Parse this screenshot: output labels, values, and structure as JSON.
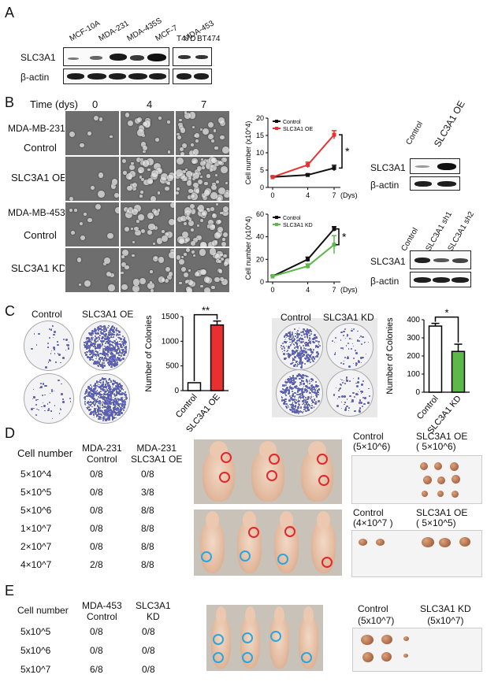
{
  "panels": {
    "A": "A",
    "B": "B",
    "C": "C",
    "D": "D",
    "E": "E"
  },
  "panelA": {
    "cell_lines": [
      "MCF-10A",
      "MDA-231",
      "MDA-435S",
      "MCF-7",
      "MDA-453",
      "T47D",
      "BT474"
    ],
    "row_labels": [
      "SLC3A1",
      "β-actin"
    ]
  },
  "panelB": {
    "time_header": "Time (dys)",
    "times": [
      "0",
      "4",
      "7"
    ],
    "groups": [
      {
        "cell_line": "MDA-MB-231",
        "rows": [
          "Control",
          "SLC3A1 OE"
        ]
      },
      {
        "cell_line": "MDA-MB-453",
        "rows": [
          "Control",
          "SLC3A1 KD"
        ]
      }
    ],
    "blot_oe": {
      "lanes": [
        "Control",
        "SLC3A1 OE"
      ],
      "rows": [
        "SLC3A1",
        "β-actin"
      ]
    },
    "blot_kd": {
      "lanes": [
        "Control",
        "SLC3A1 sh1",
        "SLC3A1 sh2"
      ],
      "rows": [
        "SLC3A1",
        "β-actin"
      ]
    }
  },
  "panelC": {
    "oe_dish_labels": [
      "Control",
      "SLC3A1 OE"
    ],
    "kd_dish_labels": [
      "Control",
      "SLC3A1 KD"
    ]
  },
  "panelD": {
    "headers": [
      "Cell number",
      "MDA-231\nControl",
      "MDA-231\nSLC3A1 OE"
    ],
    "rows": [
      [
        "5×10^4",
        "0/8",
        "0/8"
      ],
      [
        "5×10^5",
        "0/8",
        "3/8"
      ],
      [
        "5×10^6",
        "0/8",
        "8/8"
      ],
      [
        "1×10^7",
        "0/8",
        "8/8"
      ],
      [
        "2×10^7",
        "0/8",
        "8/8"
      ],
      [
        "4×10^7",
        "2/8",
        "8/8"
      ]
    ],
    "tumor_labels": {
      "top_control": "Control\n(5×10^6)",
      "top_oe": "SLC3A1 OE\n( 5×10^6)",
      "bottom_control": "Control\n(4×10^7 )",
      "bottom_oe": "SLC3A1 OE\n( 5×10^5)"
    }
  },
  "panelE": {
    "headers": [
      "Cell number",
      "MDA-453\nControl",
      "SLC3A1\nKD"
    ],
    "rows": [
      [
        "5x10^5",
        "0/8",
        "0/8"
      ],
      [
        "5x10^6",
        "0/8",
        "0/8"
      ],
      [
        "5x10^7",
        "6/8",
        "0/8"
      ]
    ],
    "tumor_labels": {
      "control": "Control\n(5x10^7)",
      "kd": "SLC3A1 KD\n(5x10^7)"
    }
  },
  "colors": {
    "control_line": "#111111",
    "oe": "#e8312f",
    "kd": "#5cb848",
    "oe_ring": "#e3262c",
    "kd_ring": "#2aa6df",
    "stain": "#5a5fb0"
  },
  "chart_data": [
    {
      "id": "growth-oe",
      "type": "line",
      "x": [
        0,
        4,
        7
      ],
      "xticks": [
        "0",
        "4",
        "7"
      ],
      "xunit": "(Dys)",
      "ylabel": "Cell number (x10^4)",
      "ylim": [
        0,
        20
      ],
      "yticks": [
        0,
        5,
        10,
        15,
        20
      ],
      "legend": "top-left",
      "series": [
        {
          "name": "Control",
          "values": [
            3,
            3.6,
            5.6
          ],
          "err": [
            0.2,
            0.3,
            0.8
          ]
        },
        {
          "name": "SLC3A1 OE",
          "values": [
            3,
            6.5,
            15.2
          ],
          "err": [
            0.2,
            0.8,
            1.2
          ]
        }
      ],
      "annotation": "*"
    },
    {
      "id": "growth-kd",
      "type": "line",
      "x": [
        0,
        4,
        7
      ],
      "xticks": [
        "0",
        "4",
        "7"
      ],
      "xunit": "(Dys)",
      "ylabel": "Cell number (x10^4)",
      "ylim": [
        0,
        60
      ],
      "yticks": [
        0,
        20,
        40,
        60
      ],
      "legend": "top-left",
      "series": [
        {
          "name": "Control",
          "values": [
            5,
            20,
            47
          ],
          "err": [
            0.5,
            2,
            2
          ]
        },
        {
          "name": "SLC3A1 KD",
          "values": [
            5,
            14,
            33
          ],
          "err": [
            0.5,
            2,
            8
          ]
        }
      ],
      "annotation": "*"
    },
    {
      "id": "colonies-oe",
      "type": "bar",
      "categories": [
        "Control",
        "SLC3A1 OE"
      ],
      "values": [
        160,
        1330
      ],
      "err": [
        0,
        80
      ],
      "ylabel": "Number of Colonies",
      "ylim": [
        0,
        1500
      ],
      "yticks": [
        0,
        500,
        1000,
        1500
      ],
      "annotation": "**"
    },
    {
      "id": "colonies-kd",
      "type": "bar",
      "categories": [
        "Control",
        "SLC3A1 KD"
      ],
      "values": [
        365,
        225
      ],
      "err": [
        15,
        40
      ],
      "ylabel": "Number of Colonies",
      "ylim": [
        0,
        400
      ],
      "yticks": [
        0,
        100,
        200,
        300,
        400
      ],
      "annotation": "*"
    }
  ]
}
